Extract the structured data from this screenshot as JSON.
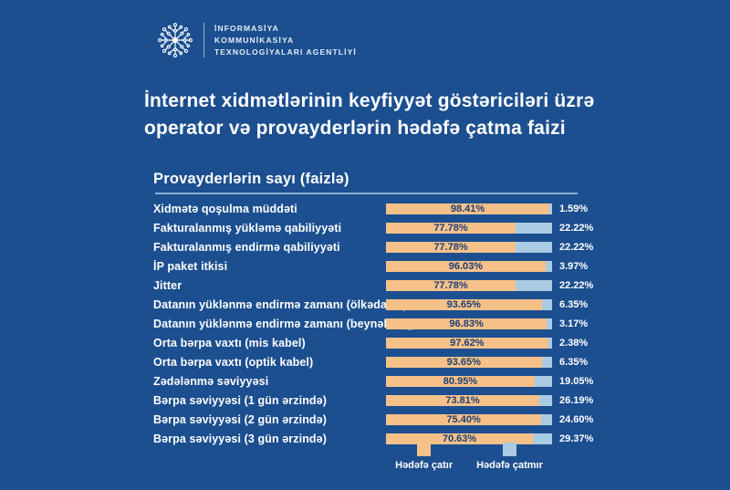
{
  "header": {
    "logo_icon": "network-snowflake-icon",
    "logo_lines": [
      "İNFORMASİYA",
      "KOMMUNİKASİYA",
      "TEXNOLOGİYALARI AGENTLİYİ"
    ]
  },
  "title": "İnternet xidmətlərinin keyfiyyət göstəriciləri üzrə operator və provayderlərin hədəfə çatma faizi",
  "section": {
    "subtitle": "Provayderlərin sayı (faizlə)"
  },
  "colors": {
    "background": "#1c4f90",
    "achieved": "#f6c189",
    "missed": "#a9cbe4",
    "bar_label": "#1d3e73",
    "underline": "#86b1d8",
    "text": "#ffffff"
  },
  "chart_data": {
    "type": "bar",
    "orientation": "horizontal",
    "stacked": true,
    "title": "Provayderlərin sayı (faizlə)",
    "xlim": [
      0,
      100
    ],
    "grid": false,
    "legend_position": "bottom",
    "categories": [
      "Xidmətə qoşulma müddəti",
      "Fakturalanmış yükləmə qabiliyyəti",
      "Fakturalanmış endirmə qabiliyyəti",
      "İP paket itkisi",
      "Jitter",
      "Datanın yüklənmə endirmə zamanı (ölkədaxili)",
      "Datanın yüklənmə endirmə zamanı (beynəlxalq)",
      "Orta bərpa vaxtı (mis kabel)",
      "Orta bərpa vaxtı (optik kabel)",
      "Zədələnmə səviyyəsi",
      "Bərpa səviyyəsi (1 gün ərzində)",
      "Bərpa səviyyəsi (2 gün ərzində)",
      "Bərpa səviyyəsi (3 gün ərzində)"
    ],
    "series": [
      {
        "name": "Hədəfə çatır",
        "color": "#f6c189",
        "values": [
          98.41,
          77.78,
          77.78,
          96.03,
          77.78,
          93.65,
          96.83,
          97.62,
          93.65,
          80.95,
          73.81,
          75.4,
          70.63
        ]
      },
      {
        "name": "Hədəfə çatmır",
        "color": "#a9cbe4",
        "values": [
          1.59,
          22.22,
          22.22,
          3.97,
          22.22,
          6.35,
          3.17,
          2.38,
          6.35,
          19.05,
          26.19,
          24.6,
          29.37
        ]
      }
    ],
    "value_labels_in_bar": [
      "98.41%",
      "77.78%",
      "77.78%",
      "96.03%",
      "77.78%",
      "93.65%",
      "96.83%",
      "97.62%",
      "93.65%",
      "80.95%",
      "73.81%",
      "75.40%",
      "70.63%"
    ],
    "value_labels_right": [
      "1.59%",
      "22.22%",
      "22.22%",
      "3.97%",
      "22.22%",
      "6.35%",
      "3.17%",
      "2.38%",
      "6.35%",
      "19.05%",
      "26.19%",
      "24.60%",
      "29.37%"
    ],
    "visual_achieved_pct": [
      98.4,
      78.0,
      78.0,
      96.0,
      78.0,
      93.7,
      96.8,
      97.6,
      93.7,
      89.5,
      92.3,
      93.5,
      88.5
    ],
    "legend": [
      "Hədəfə çatır",
      "Hədəfə çatmır"
    ]
  }
}
